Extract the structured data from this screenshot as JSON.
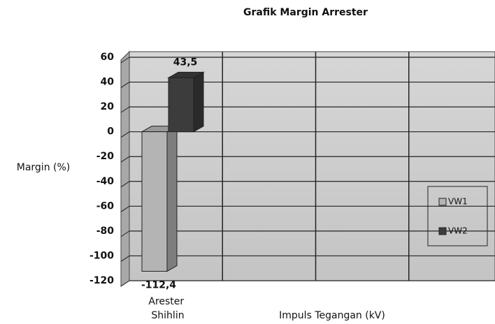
{
  "chart_data": {
    "type": "bar3d",
    "title": "Grafik Margin Arrester",
    "x_label": "Impuls Tegangan (kV)",
    "y_label": "Margin (%)",
    "categories": [
      "Arester Shihlin",
      null,
      null,
      null
    ],
    "series": [
      {
        "name": "VW1",
        "color": "#b4b4b4",
        "values": [
          -112.4,
          null,
          null,
          null
        ],
        "value_labels": [
          "-112,4",
          null,
          null,
          null
        ]
      },
      {
        "name": "VW2",
        "color": "#3c3c3c",
        "values": [
          43.5,
          null,
          null,
          null
        ],
        "value_labels": [
          "43,5",
          null,
          null,
          null
        ]
      }
    ],
    "ylim": [
      -120,
      60
    ],
    "yticks": [
      -120,
      -100,
      -80,
      -60,
      -40,
      -20,
      0,
      20,
      40,
      60
    ],
    "grid": true,
    "legend": "right"
  }
}
